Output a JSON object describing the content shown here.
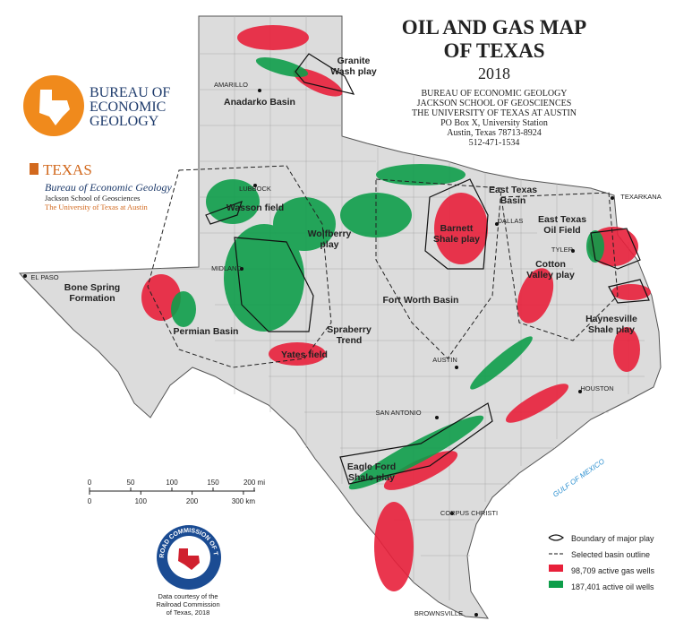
{
  "header": {
    "title_lines": [
      "OIL AND GAS MAP",
      "OF TEXAS"
    ],
    "year": "2018",
    "address": [
      "BUREAU OF ECONOMIC GEOLOGY",
      "JACKSON SCHOOL OF GEOSCIENCES",
      "THE UNIVERSITY OF TEXAS AT AUSTIN",
      "PO Box X, University Station",
      "Austin, Texas  78713-8924",
      "512-471-1534"
    ]
  },
  "logos": {
    "beg": [
      "BUREAU OF",
      "ECONOMIC",
      "GEOLOGY"
    ],
    "texas": "TEXAS",
    "texas_lines": [
      "Bureau of Economic Geology",
      "Jackson School of Geosciences",
      "The University of Texas at Austin"
    ]
  },
  "map": {
    "cities": [
      "AMARILLO",
      "LUBBOCK",
      "MIDLAND",
      "EL PASO",
      "DALLAS",
      "TYLER",
      "TEXARKANA",
      "AUSTIN",
      "SAN ANTONIO",
      "HOUSTON",
      "CORPUS CHRISTI",
      "BROWNSVILLE"
    ],
    "labels": [
      [
        "Granite",
        "Wash play"
      ],
      [
        "Anadarko Basin"
      ],
      [
        "Wasson field"
      ],
      [
        "Wolfberry",
        "play"
      ],
      [
        "Bone Spring",
        "Formation"
      ],
      [
        "Permian Basin"
      ],
      [
        "Spraberry",
        "Trend"
      ],
      [
        "Yates field"
      ],
      [
        "Fort Worth Basin"
      ],
      [
        "East Texas",
        "Basin"
      ],
      [
        "Barnett",
        "Shale play"
      ],
      [
        "East Texas",
        "Oil Field"
      ],
      [
        "Cotton",
        "Valley play"
      ],
      [
        "Haynesville",
        "Shale play"
      ],
      [
        "Eagle Ford",
        "Shale play"
      ]
    ],
    "gulf": "GULF OF MEXICO"
  },
  "scale": {
    "miles": [
      "0",
      "50",
      "100",
      "150",
      "200 mi"
    ],
    "km": [
      "0",
      "100",
      "200",
      "300 km"
    ]
  },
  "legend": [
    "Boundary of major play",
    "Selected basin outline",
    "98,709 active gas wells",
    "187,401 active oil wells"
  ],
  "credit": [
    "Data courtesy of the",
    "Railroad Commission",
    "of Texas, 2018"
  ],
  "seal": "RAILROAD COMMISSION OF TEXAS"
}
